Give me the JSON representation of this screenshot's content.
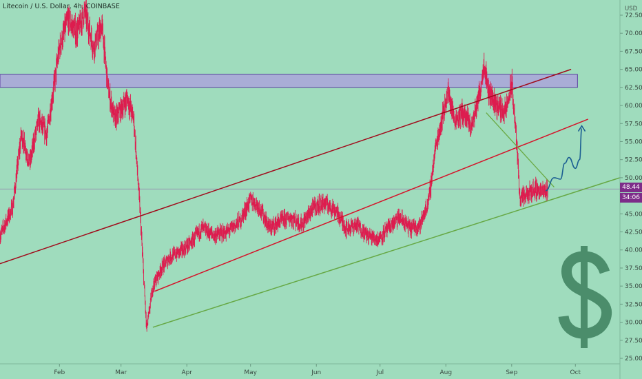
{
  "header": {
    "title": "Litecoin / U.S. Dollar, 4h, COINBASE"
  },
  "axis": {
    "currency": "USD",
    "price_badge": "48.44",
    "countdown_badge": "34:06"
  },
  "colors": {
    "background": "#9fdcbd",
    "candle": "#dd1d4f",
    "upper_channel": "#a00a1a",
    "mid_channel": "#d4142a",
    "support": "#66a844",
    "downtrend": "#6aa944",
    "resistance_zone_fill": "#a9add6",
    "resistance_zone_border": "#5a3fa0",
    "forecast_arrow": "#1b5e92",
    "price_badge_bg": "#7d2c89",
    "dollar_sign": "#4b8d6b"
  },
  "chart_data": {
    "type": "candlestick",
    "title": "Litecoin / U.S. Dollar, 4h, COINBASE",
    "ylabel": "USD",
    "ylim": [
      25,
      72.5
    ],
    "y_ticks": [
      "72.50",
      "70.00",
      "67.50",
      "65.00",
      "62.50",
      "60.00",
      "57.50",
      "55.00",
      "52.50",
      "50.00",
      "47.50",
      "45.00",
      "42.50",
      "40.00",
      "37.50",
      "35.00",
      "32.50",
      "30.00",
      "27.50",
      "25.00"
    ],
    "x_ticks": [
      "Feb",
      "Mar",
      "Apr",
      "May",
      "Jun",
      "Jul",
      "Aug",
      "Sep",
      "Oct"
    ],
    "x_tick_dates": [
      "2020-02-01",
      "2020-03-01",
      "2020-04-01",
      "2020-05-01",
      "2020-06-01",
      "2020-07-01",
      "2020-08-01",
      "2020-09-01",
      "2020-10-01"
    ],
    "xlim": [
      "2020-01-04",
      "2020-10-22"
    ],
    "last_price": 48.44,
    "price_path": [
      [
        "2020-01-04",
        42.0
      ],
      [
        "2020-01-10",
        46.0
      ],
      [
        "2020-01-14",
        56.0
      ],
      [
        "2020-01-18",
        52.0
      ],
      [
        "2020-01-22",
        58.0
      ],
      [
        "2020-01-26",
        56.0
      ],
      [
        "2020-02-01",
        68.0
      ],
      [
        "2020-02-05",
        72.0
      ],
      [
        "2020-02-09",
        70.0
      ],
      [
        "2020-02-13",
        73.0
      ],
      [
        "2020-02-17",
        68.0
      ],
      [
        "2020-02-21",
        71.0
      ],
      [
        "2020-02-24",
        62.0
      ],
      [
        "2020-02-27",
        58.0
      ],
      [
        "2020-03-04",
        61.0
      ],
      [
        "2020-03-07",
        58.0
      ],
      [
        "2020-03-10",
        45.0
      ],
      [
        "2020-03-13",
        29.0
      ],
      [
        "2020-03-16",
        35.0
      ],
      [
        "2020-03-20",
        37.5
      ],
      [
        "2020-03-24",
        39.0
      ],
      [
        "2020-03-30",
        40.0
      ],
      [
        "2020-04-03",
        41.0
      ],
      [
        "2020-04-08",
        43.0
      ],
      [
        "2020-04-14",
        42.0
      ],
      [
        "2020-04-20",
        42.5
      ],
      [
        "2020-04-26",
        44.0
      ],
      [
        "2020-05-01",
        47.0
      ],
      [
        "2020-05-05",
        46.0
      ],
      [
        "2020-05-10",
        43.0
      ],
      [
        "2020-05-15",
        44.0
      ],
      [
        "2020-05-20",
        44.5
      ],
      [
        "2020-05-25",
        43.5
      ],
      [
        "2020-05-31",
        46.0
      ],
      [
        "2020-06-05",
        46.5
      ],
      [
        "2020-06-10",
        45.5
      ],
      [
        "2020-06-15",
        43.0
      ],
      [
        "2020-06-20",
        43.5
      ],
      [
        "2020-06-25",
        42.0
      ],
      [
        "2020-06-30",
        41.5
      ],
      [
        "2020-07-05",
        43.0
      ],
      [
        "2020-07-10",
        44.5
      ],
      [
        "2020-07-15",
        43.0
      ],
      [
        "2020-07-20",
        43.5
      ],
      [
        "2020-07-24",
        47.0
      ],
      [
        "2020-07-27",
        54.0
      ],
      [
        "2020-07-30",
        58.0
      ],
      [
        "2020-08-02",
        62.0
      ],
      [
        "2020-08-05",
        58.0
      ],
      [
        "2020-08-09",
        59.0
      ],
      [
        "2020-08-13",
        57.0
      ],
      [
        "2020-08-17",
        62.0
      ],
      [
        "2020-08-19",
        66.0
      ],
      [
        "2020-08-21",
        62.0
      ],
      [
        "2020-08-25",
        60.0
      ],
      [
        "2020-08-29",
        59.0
      ],
      [
        "2020-09-01",
        63.0
      ],
      [
        "2020-09-03",
        56.0
      ],
      [
        "2020-09-05",
        47.0
      ],
      [
        "2020-09-08",
        47.5
      ],
      [
        "2020-09-12",
        48.5
      ],
      [
        "2020-09-16",
        48.0
      ],
      [
        "2020-09-18",
        48.4
      ]
    ],
    "annotations": {
      "upper_channel": [
        [
          "2020-01-04",
          38.1
        ],
        [
          "2020-09-29",
          65.0
        ]
      ],
      "mid_channel": [
        [
          "2020-03-17",
          34.3
        ],
        [
          "2020-10-07",
          58.1
        ]
      ],
      "support": [
        [
          "2020-03-16",
          29.3
        ],
        [
          "2020-10-22",
          50.0
        ]
      ],
      "downtrend": [
        [
          "2020-08-20",
          59.0
        ],
        [
          "2020-09-21",
          48.7
        ]
      ],
      "resistance_zone": {
        "from": "2020-01-04",
        "to": "2020-10-02",
        "low": 62.5,
        "high": 64.3
      },
      "forecast_path": [
        [
          "2020-09-17",
          48.2
        ],
        [
          "2020-09-21",
          50.0
        ],
        [
          "2020-09-24",
          49.8
        ],
        [
          "2020-09-26",
          52.0
        ],
        [
          "2020-09-28",
          52.8
        ],
        [
          "2020-10-01",
          51.3
        ],
        [
          "2020-10-03",
          52.5
        ],
        [
          "2020-10-04",
          56.8
        ]
      ]
    }
  }
}
